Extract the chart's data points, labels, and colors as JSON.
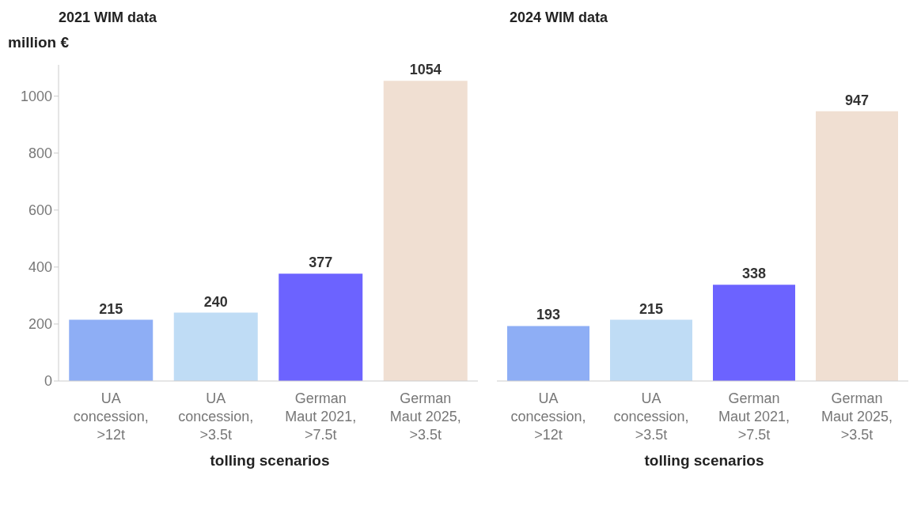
{
  "chart_data": [
    {
      "type": "bar",
      "title": "2021 WIM data",
      "ylabel": "million €",
      "xlabel": "tolling scenarios",
      "categories": [
        "UA concession, >12t",
        "UA concession, >3.5t",
        "German Maut 2021, >7.5t",
        "German Maut 2025, >3.5t"
      ],
      "values": [
        215,
        240,
        377,
        1054
      ],
      "colors": [
        "#8eaef5",
        "#bfdcf5",
        "#6c63ff",
        "#f0dfd2"
      ],
      "ylim": [
        0,
        1110
      ],
      "yticks": [
        0,
        200,
        400,
        600,
        800,
        1000
      ],
      "data_labels": true,
      "grid": false,
      "legend": false
    },
    {
      "type": "bar",
      "title": "2024 WIM data",
      "xlabel": "tolling scenarios",
      "categories": [
        "UA concession, >12t",
        "UA concession, >3.5t",
        "German Maut 2021, >7.5t",
        "German Maut 2025, >3.5t"
      ],
      "values": [
        193,
        215,
        338,
        947
      ],
      "colors": [
        "#8eaef5",
        "#bfdcf5",
        "#6c63ff",
        "#f0dfd2"
      ],
      "tick_labels": "x",
      "data_labels": true,
      "grid": false,
      "legend": false
    }
  ]
}
